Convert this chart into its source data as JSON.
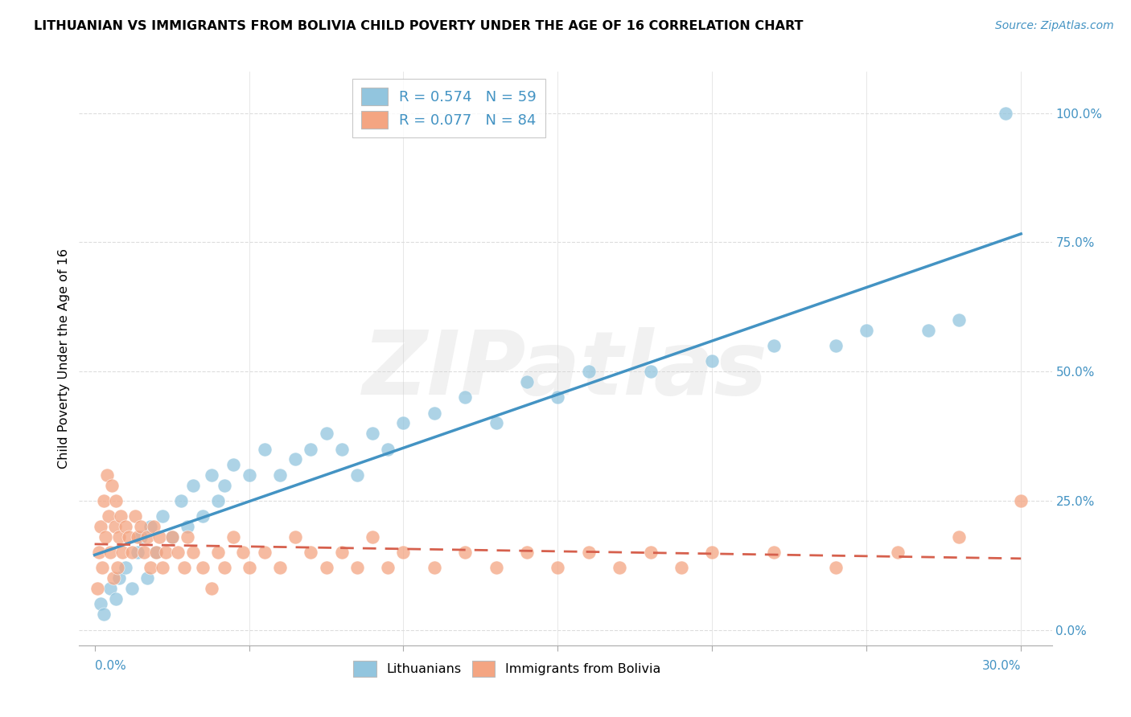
{
  "title": "LITHUANIAN VS IMMIGRANTS FROM BOLIVIA CHILD POVERTY UNDER THE AGE OF 16 CORRELATION CHART",
  "source": "Source: ZipAtlas.com",
  "ylabel": "Child Poverty Under the Age of 16",
  "color_blue": "#92c5de",
  "color_pink": "#f4a582",
  "color_line_blue": "#4393c3",
  "color_line_pink": "#d6604d",
  "watermark": "ZIPatlas",
  "blue_regression": [
    3.5,
    60.0
  ],
  "pink_regression": [
    10.0,
    25.0
  ],
  "blue_x": [
    0.2,
    0.3,
    0.5,
    0.7,
    0.8,
    1.0,
    1.2,
    1.4,
    1.5,
    1.7,
    1.8,
    2.0,
    2.2,
    2.5,
    2.8,
    3.0,
    3.2,
    3.5,
    3.8,
    4.0,
    4.2,
    4.5,
    5.0,
    5.5,
    6.0,
    6.5,
    7.0,
    7.5,
    8.0,
    8.5,
    9.0,
    9.5,
    10.0,
    11.0,
    12.0,
    13.0,
    14.0,
    15.0,
    16.0,
    18.0,
    20.0,
    22.0,
    24.0,
    25.0,
    27.0,
    28.0,
    29.5
  ],
  "blue_y": [
    5,
    3,
    8,
    6,
    10,
    12,
    8,
    15,
    18,
    10,
    20,
    15,
    22,
    18,
    25,
    20,
    28,
    22,
    30,
    25,
    28,
    32,
    30,
    35,
    30,
    33,
    35,
    38,
    35,
    30,
    38,
    35,
    40,
    42,
    45,
    40,
    48,
    45,
    50,
    50,
    52,
    55,
    55,
    58,
    58,
    60,
    100
  ],
  "pink_x": [
    0.1,
    0.15,
    0.2,
    0.25,
    0.3,
    0.35,
    0.4,
    0.45,
    0.5,
    0.55,
    0.6,
    0.65,
    0.7,
    0.75,
    0.8,
    0.85,
    0.9,
    1.0,
    1.1,
    1.2,
    1.3,
    1.4,
    1.5,
    1.6,
    1.7,
    1.8,
    1.9,
    2.0,
    2.1,
    2.2,
    2.3,
    2.5,
    2.7,
    2.9,
    3.0,
    3.2,
    3.5,
    3.8,
    4.0,
    4.2,
    4.5,
    4.8,
    5.0,
    5.5,
    6.0,
    6.5,
    7.0,
    7.5,
    8.0,
    8.5,
    9.0,
    9.5,
    10.0,
    11.0,
    12.0,
    13.0,
    14.0,
    15.0,
    16.0,
    17.0,
    18.0,
    19.0,
    20.0,
    22.0,
    24.0,
    26.0,
    28.0,
    30.0
  ],
  "pink_y": [
    8,
    15,
    20,
    12,
    25,
    18,
    30,
    22,
    15,
    28,
    10,
    20,
    25,
    12,
    18,
    22,
    15,
    20,
    18,
    15,
    22,
    18,
    20,
    15,
    18,
    12,
    20,
    15,
    18,
    12,
    15,
    18,
    15,
    12,
    18,
    15,
    12,
    8,
    15,
    12,
    18,
    15,
    12,
    15,
    12,
    18,
    15,
    12,
    15,
    12,
    18,
    12,
    15,
    12,
    15,
    12,
    15,
    12,
    15,
    12,
    15,
    12,
    15,
    15,
    12,
    15,
    18,
    25
  ]
}
